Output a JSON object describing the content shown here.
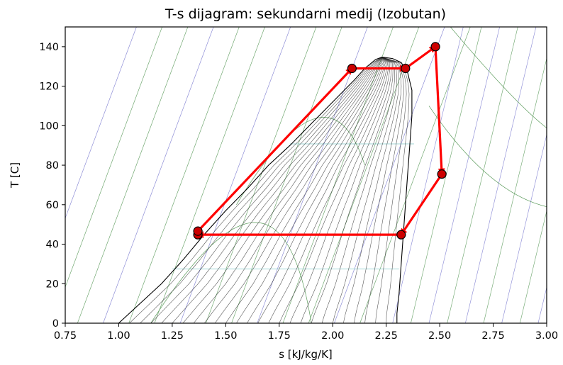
{
  "chart_data": {
    "type": "line",
    "title": "T-s dijagram: sekundarni medij (Izobutan)",
    "xlabel": "s [kJ/kg/K]",
    "ylabel": "T [C]",
    "xlim": [
      0.75,
      3.0
    ],
    "ylim": [
      0,
      150
    ],
    "xticks": [
      0.75,
      1.0,
      1.25,
      1.5,
      1.75,
      2.0,
      2.25,
      2.5,
      2.75,
      3.0
    ],
    "xtick_labels": [
      "0.75",
      "1.00",
      "1.25",
      "1.50",
      "1.75",
      "2.00",
      "2.25",
      "2.50",
      "2.75",
      "3.00"
    ],
    "yticks": [
      0,
      20,
      40,
      60,
      80,
      100,
      120,
      140
    ],
    "ytick_labels": [
      "0",
      "20",
      "40",
      "60",
      "80",
      "100",
      "120",
      "140"
    ],
    "grid": false,
    "legend": "none",
    "saturation_dome": {
      "critical_point": [
        2.23,
        134.7
      ],
      "liquid_line": [
        [
          1.0,
          0
        ],
        [
          1.1,
          10
        ],
        [
          1.2,
          20
        ],
        [
          1.3,
          32
        ],
        [
          1.4,
          45
        ],
        [
          1.5,
          57
        ],
        [
          1.6,
          68
        ],
        [
          1.7,
          80
        ],
        [
          1.8,
          90
        ],
        [
          1.9,
          101
        ],
        [
          2.0,
          112
        ],
        [
          2.1,
          123
        ],
        [
          2.15,
          129
        ],
        [
          2.2,
          133.5
        ],
        [
          2.23,
          134.7
        ]
      ],
      "vapor_line": [
        [
          2.23,
          134.7
        ],
        [
          2.28,
          134
        ],
        [
          2.32,
          132
        ],
        [
          2.35,
          127
        ],
        [
          2.37,
          118
        ],
        [
          2.37,
          105
        ],
        [
          2.36,
          90
        ],
        [
          2.35,
          75
        ],
        [
          2.34,
          60
        ],
        [
          2.33,
          45
        ],
        [
          2.32,
          30
        ],
        [
          2.31,
          15
        ],
        [
          2.3,
          5
        ],
        [
          2.3,
          0
        ]
      ]
    },
    "cycle": {
      "color": "#ff0000",
      "marker_color": "#cc0000",
      "points": [
        {
          "s": 1.37,
          "T": 44.8
        },
        {
          "s": 1.37,
          "T": 46.6
        },
        {
          "s": 2.09,
          "T": 129.0
        },
        {
          "s": 2.34,
          "T": 129.0
        },
        {
          "s": 2.48,
          "T": 140.0
        },
        {
          "s": 2.51,
          "T": 75.5
        },
        {
          "s": 2.32,
          "T": 44.8
        }
      ],
      "segments": [
        [
          0,
          1
        ],
        [
          1,
          2
        ],
        [
          2,
          3
        ],
        [
          3,
          4
        ],
        [
          4,
          5
        ],
        [
          5,
          6
        ],
        [
          6,
          0
        ]
      ]
    },
    "background_colors": {
      "isobar": "#5a9a5a",
      "isochore": "#7b7bd0",
      "isenthalp": "#80c8c8",
      "quality": "#222222"
    }
  }
}
